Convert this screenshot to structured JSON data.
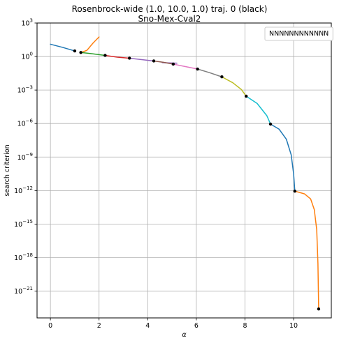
{
  "chart_data": {
    "type": "line",
    "title": "Rosenbrock-wide (1.0, 10.0, 1.0) traj. 0 (black)",
    "subtitle": "Sno-Mex-Cval2",
    "xlabel": "α",
    "ylabel": "search criterion",
    "yscale": "log",
    "xlim": [
      -0.55,
      11.55
    ],
    "ylim_log10": [
      -23.4,
      3.0
    ],
    "x_ticks": [
      0,
      2,
      4,
      6,
      8,
      10
    ],
    "x_tick_labels": [
      "0",
      "2",
      "4",
      "6",
      "8",
      "10"
    ],
    "y_ticks_log10": [
      3,
      0,
      -3,
      -6,
      -9,
      -12,
      -15,
      -18,
      -21
    ],
    "y_tick_labels": [
      {
        "base": "10",
        "exp": "3"
      },
      {
        "base": "10",
        "exp": "0"
      },
      {
        "base": "10",
        "exp": "−3"
      },
      {
        "base": "10",
        "exp": "−6"
      },
      {
        "base": "10",
        "exp": "−9"
      },
      {
        "base": "10",
        "exp": "−12"
      },
      {
        "base": "10",
        "exp": "−15"
      },
      {
        "base": "10",
        "exp": "−18"
      },
      {
        "base": "10",
        "exp": "−21"
      }
    ],
    "grid": true,
    "legend": {
      "placement": "top-right",
      "entries": [
        "NNNNNNNNNNNN"
      ]
    },
    "colors": {
      "blue": "#1f77b4",
      "orange": "#ff7f0e",
      "green": "#2ca02c",
      "red": "#d62728",
      "purple": "#9467bd",
      "brown": "#8c564b",
      "pink": "#e377c2",
      "gray": "#7f7f7f",
      "olive": "#bcbd22",
      "cyan": "#17becf",
      "marker": "#000000"
    },
    "series": [
      {
        "color": "blue",
        "points": [
          [
            0,
            1.1
          ],
          [
            0.5,
            0.82
          ],
          [
            1.0,
            0.5
          ]
        ]
      },
      {
        "color": "orange",
        "points": [
          [
            1.25,
            0.36
          ],
          [
            1.5,
            0.55
          ],
          [
            1.75,
            1.2
          ],
          [
            2.0,
            1.75
          ]
        ]
      },
      {
        "color": "green",
        "points": [
          [
            1.25,
            0.36
          ],
          [
            1.75,
            0.24
          ],
          [
            2.25,
            0.1
          ]
        ]
      },
      {
        "color": "red",
        "points": [
          [
            2.25,
            0.1
          ],
          [
            2.75,
            -0.06
          ],
          [
            3.25,
            -0.15
          ]
        ]
      },
      {
        "color": "purple",
        "points": [
          [
            3.25,
            -0.15
          ],
          [
            3.75,
            -0.28
          ],
          [
            4.25,
            -0.4
          ]
        ]
      },
      {
        "color": "purple",
        "points": [
          [
            4.6,
            -0.55
          ],
          [
            5.2,
            -0.6
          ]
        ]
      },
      {
        "color": "brown",
        "points": [
          [
            4.25,
            -0.4
          ],
          [
            4.65,
            -0.52
          ],
          [
            5.05,
            -0.68
          ]
        ]
      },
      {
        "color": "pink",
        "points": [
          [
            5.05,
            -0.68
          ],
          [
            5.55,
            -0.9
          ],
          [
            6.05,
            -1.12
          ]
        ]
      },
      {
        "color": "gray",
        "points": [
          [
            6.05,
            -1.12
          ],
          [
            6.55,
            -1.45
          ],
          [
            7.05,
            -1.82
          ]
        ]
      },
      {
        "color": "olive",
        "points": [
          [
            7.05,
            -1.82
          ],
          [
            7.5,
            -2.35
          ],
          [
            7.85,
            -2.95
          ],
          [
            8.05,
            -3.55
          ]
        ]
      },
      {
        "color": "cyan",
        "points": [
          [
            8.05,
            -3.55
          ],
          [
            8.5,
            -4.2
          ],
          [
            8.9,
            -5.3
          ],
          [
            9.05,
            -6.05
          ]
        ]
      },
      {
        "color": "blue",
        "points": [
          [
            9.05,
            -6.05
          ],
          [
            9.4,
            -6.5
          ],
          [
            9.7,
            -7.4
          ],
          [
            9.9,
            -8.8
          ],
          [
            10.0,
            -10.5
          ],
          [
            10.05,
            -12.05
          ]
        ]
      },
      {
        "color": "orange",
        "points": [
          [
            10.05,
            -12.05
          ],
          [
            10.45,
            -12.3
          ],
          [
            10.7,
            -12.75
          ],
          [
            10.85,
            -13.7
          ],
          [
            10.95,
            -15.5
          ],
          [
            11.0,
            -18.5
          ],
          [
            11.03,
            -22.6
          ]
        ]
      }
    ],
    "markers": [
      [
        1.0,
        0.5
      ],
      [
        1.25,
        0.36
      ],
      [
        2.25,
        0.1
      ],
      [
        3.25,
        -0.15
      ],
      [
        4.25,
        -0.4
      ],
      [
        5.05,
        -0.68
      ],
      [
        6.05,
        -1.12
      ],
      [
        7.05,
        -1.82
      ],
      [
        8.05,
        -3.55
      ],
      [
        9.05,
        -6.05
      ],
      [
        10.05,
        -12.05
      ],
      [
        11.03,
        -22.6
      ]
    ]
  }
}
